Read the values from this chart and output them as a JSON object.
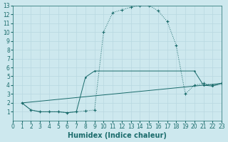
{
  "xlabel": "Humidex (Indice chaleur)",
  "background_color": "#cde8ee",
  "line_color": "#1a6b6b",
  "grid_color": "#b8d8e0",
  "xlim": [
    0,
    23
  ],
  "ylim": [
    0,
    13
  ],
  "xticks": [
    0,
    1,
    2,
    3,
    4,
    5,
    6,
    7,
    8,
    9,
    10,
    11,
    12,
    13,
    14,
    15,
    16,
    17,
    18,
    19,
    20,
    21,
    22,
    23
  ],
  "yticks": [
    1,
    2,
    3,
    4,
    5,
    6,
    7,
    8,
    9,
    10,
    11,
    12,
    13
  ],
  "line1_x": [
    1,
    2,
    3,
    4,
    5,
    6,
    7,
    8,
    9,
    10,
    11,
    12,
    13,
    14,
    15,
    16,
    17,
    18,
    19,
    20,
    21,
    22,
    23
  ],
  "line1_y": [
    2,
    1.2,
    1.0,
    1.0,
    1.0,
    0.9,
    1.0,
    1.1,
    1.2,
    10,
    12.2,
    12.5,
    12.8,
    13,
    13,
    12.4,
    11.2,
    8.5,
    3.0,
    4.0,
    4.2,
    4.0,
    4.2
  ],
  "line2_x": [
    1,
    2,
    3,
    4,
    5,
    6,
    7,
    8,
    9,
    20,
    21,
    22,
    23
  ],
  "line2_y": [
    2,
    1.2,
    1.0,
    1.0,
    1.0,
    0.9,
    1.0,
    4.9,
    5.6,
    5.6,
    4.0,
    3.9,
    4.2
  ],
  "line3_x": [
    1,
    23
  ],
  "line3_y": [
    2,
    4.2
  ],
  "tick_fontsize": 5.5,
  "xlabel_fontsize": 7
}
